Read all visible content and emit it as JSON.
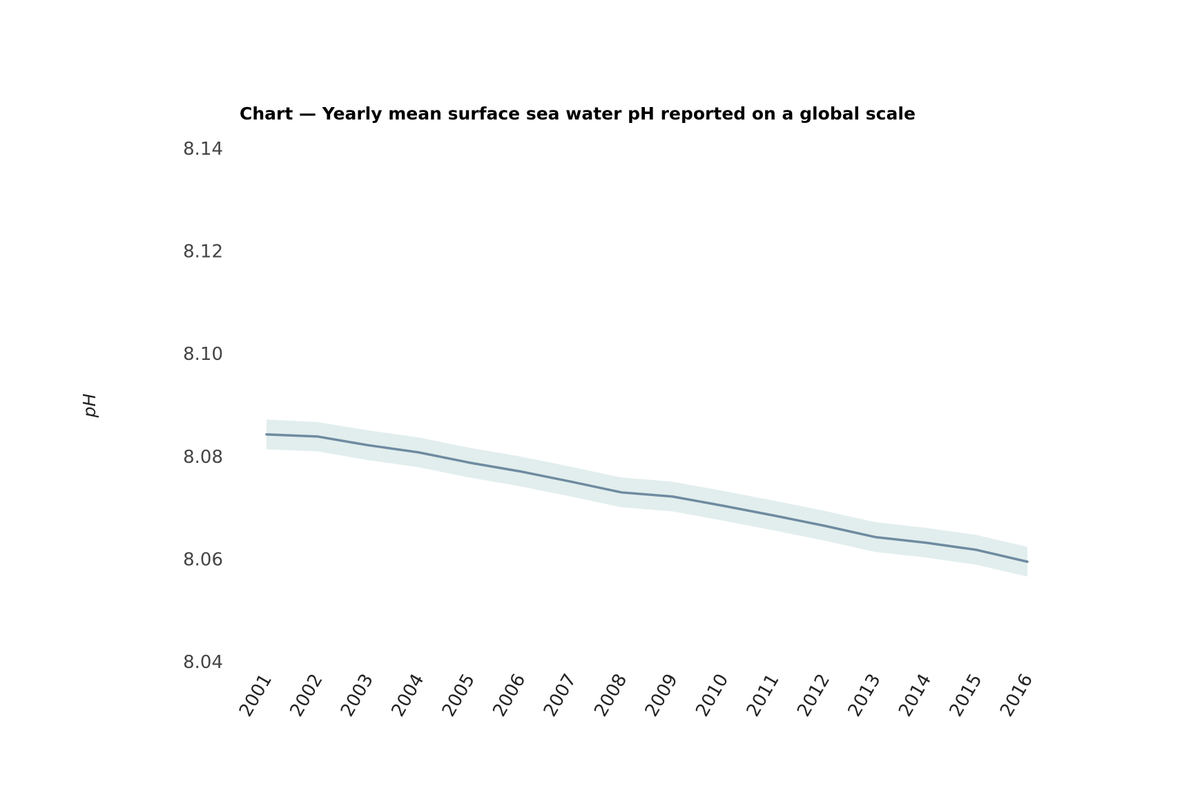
{
  "chart_data": {
    "type": "line",
    "title": "Chart — Yearly mean surface sea water pH reported on a global scale",
    "xlabel": "",
    "ylabel": "pH",
    "ylim": [
      8.04,
      8.14
    ],
    "y_ticks": [
      "8.04",
      "8.06",
      "8.08",
      "8.10",
      "8.12",
      "8.14"
    ],
    "grid": false,
    "x": [
      "2001",
      "2002",
      "2003",
      "2004",
      "2005",
      "2006",
      "2007",
      "2008",
      "2009",
      "2010",
      "2011",
      "2012",
      "2013",
      "2014",
      "2015",
      "2016"
    ],
    "series": [
      {
        "values": [
          8.0843,
          8.0839,
          8.0822,
          8.0808,
          8.0788,
          8.0771,
          8.0751,
          8.073,
          8.0722,
          8.0704,
          8.0685,
          8.0665,
          8.0643,
          8.0632,
          8.0618,
          8.0595
        ],
        "upper": [
          8.0872,
          8.0867,
          8.0851,
          8.0837,
          8.0817,
          8.08,
          8.078,
          8.0759,
          8.0751,
          8.0733,
          8.0714,
          8.0694,
          8.0672,
          8.0661,
          8.0647,
          8.0624
        ],
        "lower": [
          8.0814,
          8.081,
          8.0793,
          8.0779,
          8.0759,
          8.0742,
          8.0722,
          8.0701,
          8.0693,
          8.0675,
          8.0656,
          8.0636,
          8.0614,
          8.0603,
          8.0589,
          8.0566
        ],
        "line_color": "#6e8ba0",
        "band_color": "#e1eeed"
      }
    ]
  }
}
